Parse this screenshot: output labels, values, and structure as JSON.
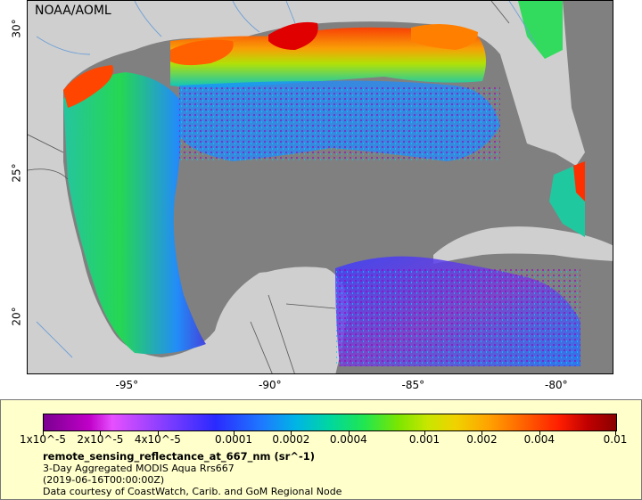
{
  "map": {
    "org_label": "NOAA/AOML",
    "x_ticks": [
      {
        "label": "-95°",
        "lon": -95
      },
      {
        "label": "-90°",
        "lon": -90
      },
      {
        "label": "-85°",
        "lon": -85
      },
      {
        "label": "-80°",
        "lon": -80
      }
    ],
    "y_ticks": [
      {
        "label": "30°",
        "lat": 30
      },
      {
        "label": "25°",
        "lat": 25
      },
      {
        "label": "20°",
        "lat": 20
      }
    ],
    "lon_range": [
      -98.5,
      -78.0
    ],
    "lat_range": [
      18.0,
      31.0
    ],
    "colors": {
      "land": "#cfcfcf",
      "no_data": "#808080",
      "border": "#555555",
      "river": "#6ea0d6"
    }
  },
  "legend": {
    "variable": "remote_sensing_reflectance_at_667_nm (sr^-1)",
    "product": "3-Day Aggregated MODIS Aqua Rrs667",
    "date": "(2019-06-16T00:00:00Z)",
    "credit": "Data courtesy of CoastWatch, Carib. and GoM Regional Node",
    "colorbar_ticks": [
      {
        "label": "1x10^-5",
        "value": 1e-05
      },
      {
        "label": "2x10^-5",
        "value": 2e-05
      },
      {
        "label": "4x10^-5",
        "value": 4e-05
      },
      {
        "label": "0.0001",
        "value": 0.0001
      },
      {
        "label": "0.0002",
        "value": 0.0002
      },
      {
        "label": "0.0004",
        "value": 0.0004
      },
      {
        "label": "0.001",
        "value": 0.001
      },
      {
        "label": "0.002",
        "value": 0.002
      },
      {
        "label": "0.004",
        "value": 0.004
      },
      {
        "label": "0.01",
        "value": 0.01
      }
    ],
    "colorbar_range": [
      1e-05,
      0.01
    ],
    "colorbar_scale": "log"
  }
}
